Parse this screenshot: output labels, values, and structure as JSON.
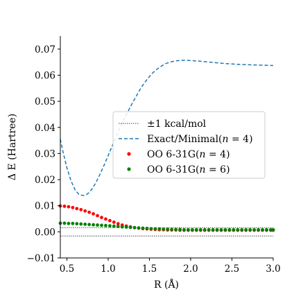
{
  "chart_data": {
    "type": "scatter",
    "xlabel": "R (Å)",
    "ylabel": "Δ E (Hartree)",
    "xlim": [
      0.42,
      3.0
    ],
    "ylim": [
      -0.01,
      0.075
    ],
    "xticks": [
      0.5,
      1.0,
      1.5,
      2.0,
      2.5,
      3.0
    ],
    "xtick_labels": [
      "0.5",
      "1.0",
      "1.5",
      "2.0",
      "2.5",
      "3.0"
    ],
    "yticks": [
      -0.01,
      0.0,
      0.01,
      0.02,
      0.03,
      0.04,
      0.05,
      0.06,
      0.07
    ],
    "ytick_labels": [
      "−0.01",
      "0.00",
      "0.01",
      "0.02",
      "0.03",
      "0.04",
      "0.05",
      "0.06",
      "0.07"
    ],
    "legend_placement": "center-right",
    "grid": false,
    "reference_lines": {
      "label": "±1 kcal/mol",
      "values": [
        0.0016,
        -0.0016
      ],
      "color": "#444444",
      "style": "dotted"
    },
    "series": [
      {
        "name": "Exact/Minimal(n = 4)",
        "legend_main": "Exact/Minimal(",
        "legend_math": "n",
        "legend_tail": " = 4)",
        "kind": "line",
        "color": "#1f77b4",
        "style": "dashed",
        "x": [
          0.42,
          0.45,
          0.5,
          0.55,
          0.6,
          0.65,
          0.7,
          0.75,
          0.8,
          0.85,
          0.9,
          0.95,
          1.0,
          1.05,
          1.1,
          1.15,
          1.2,
          1.25,
          1.3,
          1.35,
          1.4,
          1.45,
          1.5,
          1.55,
          1.6,
          1.65,
          1.7,
          1.75,
          1.8,
          1.85,
          1.9,
          1.95,
          2.0,
          2.05,
          2.1,
          2.2,
          2.3,
          2.4,
          2.5,
          2.6,
          2.7,
          2.8,
          2.9,
          3.0
        ],
        "y": [
          0.0355,
          0.031,
          0.0245,
          0.0195,
          0.016,
          0.0142,
          0.0139,
          0.0145,
          0.0162,
          0.0188,
          0.022,
          0.0255,
          0.0292,
          0.033,
          0.0367,
          0.0403,
          0.0437,
          0.0467,
          0.0497,
          0.0525,
          0.0553,
          0.0575,
          0.0595,
          0.0612,
          0.0625,
          0.0636,
          0.0645,
          0.065,
          0.0654,
          0.0656,
          0.0657,
          0.0657,
          0.0656,
          0.0655,
          0.0654,
          0.0651,
          0.0648,
          0.0645,
          0.0643,
          0.0641,
          0.064,
          0.0639,
          0.0638,
          0.0637
        ]
      },
      {
        "name": "OO 6-31G(n = 4)",
        "legend_main": "OO 6-31G(",
        "legend_math": "n",
        "legend_tail": " = 4)",
        "kind": "scatter",
        "color": "#ff0000",
        "x": [
          0.42,
          0.47,
          0.52,
          0.57,
          0.62,
          0.67,
          0.72,
          0.77,
          0.82,
          0.87,
          0.92,
          0.97,
          1.02,
          1.07,
          1.12,
          1.17,
          1.22,
          1.27,
          1.32,
          1.37,
          1.42,
          1.47,
          1.52,
          1.57,
          1.62,
          1.67,
          1.72,
          1.77,
          1.82,
          1.87,
          1.92,
          1.97,
          2.02,
          2.07,
          2.12,
          2.17,
          2.22,
          2.27,
          2.32,
          2.37,
          2.42,
          2.47,
          2.52,
          2.57,
          2.62,
          2.67,
          2.72,
          2.77,
          2.82,
          2.87,
          2.92,
          2.97,
          3.0
        ],
        "y": [
          0.0099,
          0.0098,
          0.0096,
          0.0093,
          0.0089,
          0.0085,
          0.008,
          0.0075,
          0.0069,
          0.0062,
          0.0055,
          0.0049,
          0.0043,
          0.0037,
          0.0031,
          0.0026,
          0.0022,
          0.0019,
          0.0016,
          0.0014,
          0.0012,
          0.0011,
          0.001,
          0.0009,
          0.0008,
          0.0008,
          0.0007,
          0.0007,
          0.0007,
          0.0006,
          0.0006,
          0.0006,
          0.0006,
          0.0006,
          0.0006,
          0.0006,
          0.0006,
          0.0006,
          0.0006,
          0.0006,
          0.0006,
          0.0006,
          0.0006,
          0.0006,
          0.0006,
          0.0006,
          0.0006,
          0.0006,
          0.0006,
          0.0006,
          0.0006,
          0.0006,
          0.0006
        ]
      },
      {
        "name": "OO 6-31G(n = 6)",
        "legend_main": "OO 6-31G(",
        "legend_math": "n",
        "legend_tail": " = 6)",
        "kind": "scatter",
        "color": "#008000",
        "x": [
          0.42,
          0.47,
          0.52,
          0.57,
          0.62,
          0.67,
          0.72,
          0.77,
          0.82,
          0.87,
          0.92,
          0.97,
          1.02,
          1.07,
          1.12,
          1.17,
          1.22,
          1.27,
          1.32,
          1.37,
          1.42,
          1.47,
          1.52,
          1.57,
          1.62,
          1.67,
          1.72,
          1.77,
          1.82,
          1.87,
          1.92,
          1.97,
          2.02,
          2.07,
          2.12,
          2.17,
          2.22,
          2.27,
          2.32,
          2.37,
          2.42,
          2.47,
          2.52,
          2.57,
          2.62,
          2.67,
          2.72,
          2.77,
          2.82,
          2.87,
          2.92,
          2.97,
          3.0
        ],
        "y": [
          0.0033,
          0.0033,
          0.0032,
          0.0032,
          0.0031,
          0.003,
          0.0029,
          0.0028,
          0.0027,
          0.0026,
          0.0025,
          0.0024,
          0.0023,
          0.0022,
          0.0021,
          0.0019,
          0.0018,
          0.0017,
          0.0016,
          0.0015,
          0.0014,
          0.0013,
          0.0012,
          0.0011,
          0.0011,
          0.001,
          0.001,
          0.0009,
          0.0009,
          0.0009,
          0.0008,
          0.0008,
          0.0008,
          0.0008,
          0.0008,
          0.0008,
          0.0008,
          0.0008,
          0.0008,
          0.0008,
          0.0008,
          0.0008,
          0.0008,
          0.0008,
          0.0008,
          0.0008,
          0.0008,
          0.0008,
          0.0008,
          0.0008,
          0.0008,
          0.0008,
          0.0008
        ]
      }
    ]
  }
}
